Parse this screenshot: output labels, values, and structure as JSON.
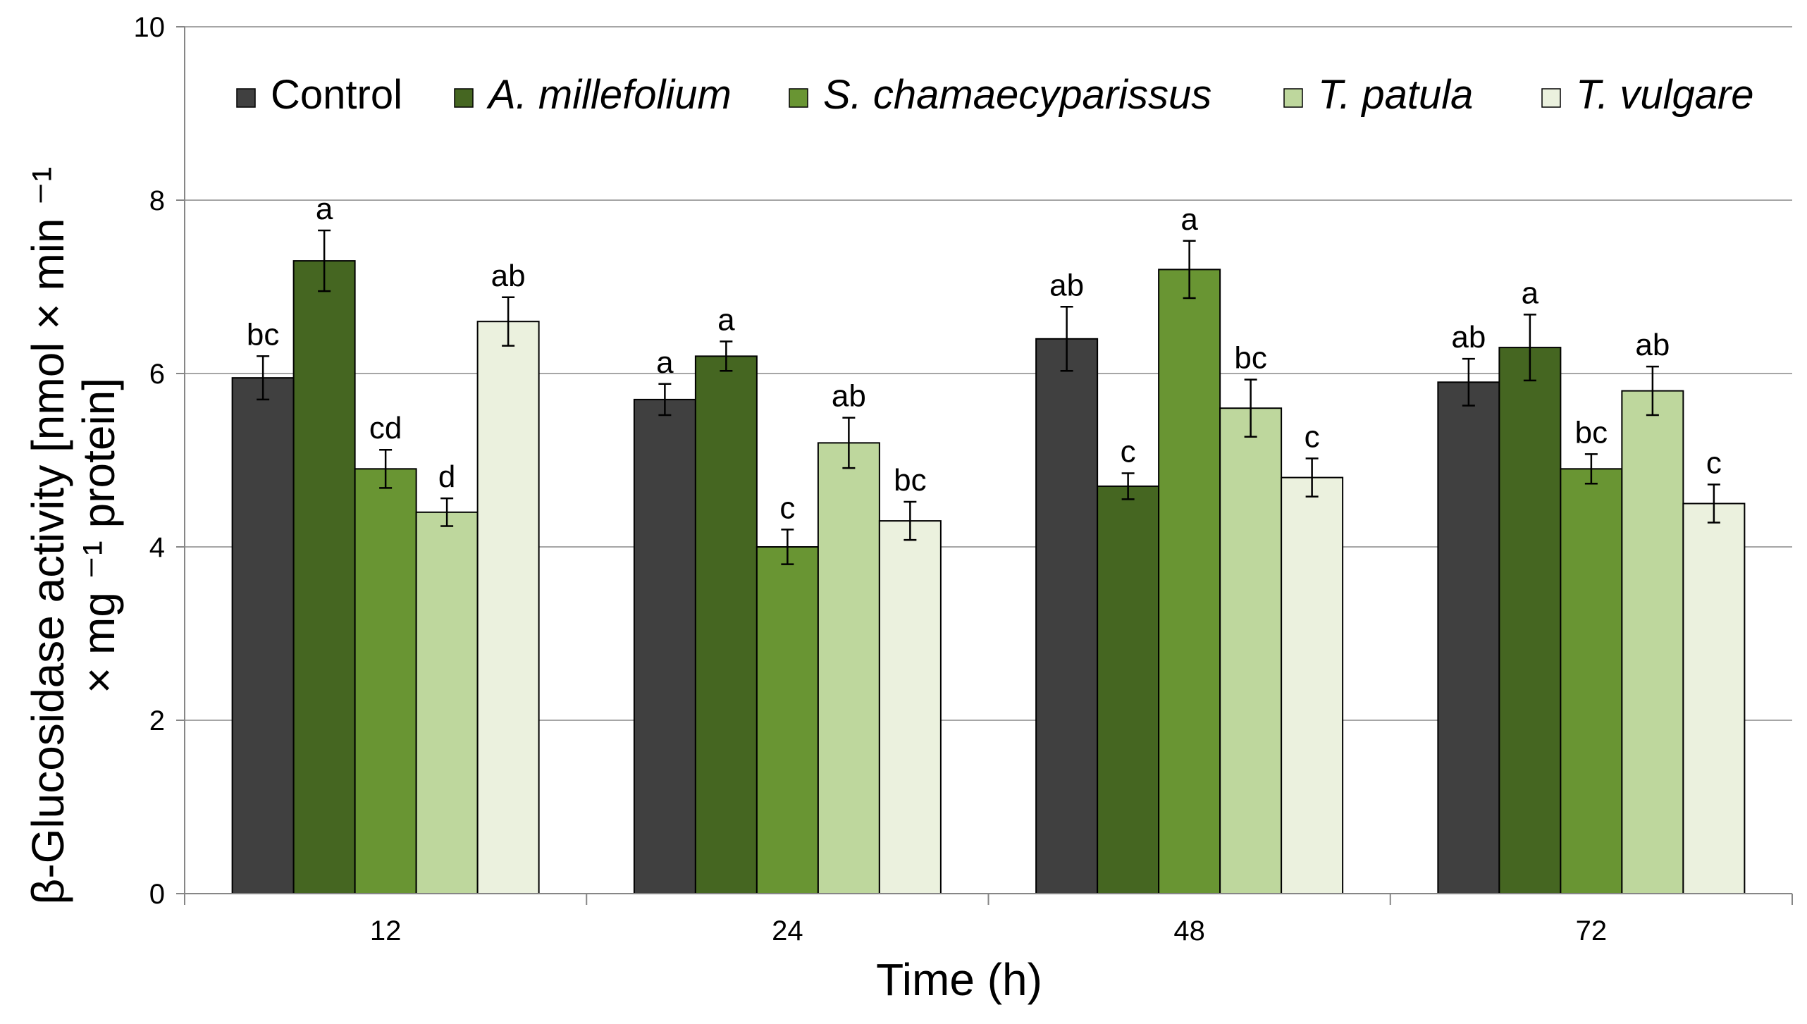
{
  "chart_data": {
    "type": "bar",
    "title": "",
    "xlabel": "Time (h)",
    "ylabel_line1": "β-Glucosidase activity [nmol × min ⁻¹",
    "ylabel_line2": "× mg ⁻¹ protein]",
    "ylim": [
      0,
      10
    ],
    "yticks": [
      "0",
      "2",
      "4",
      "6",
      "8",
      "10"
    ],
    "grid": true,
    "legend_position": "top",
    "categories": [
      "12",
      "24",
      "48",
      "72"
    ],
    "series": [
      {
        "name": "Control",
        "italic": false,
        "color": "#404040",
        "values": [
          5.95,
          5.7,
          6.4,
          5.9
        ],
        "errors": [
          0.25,
          0.18,
          0.37,
          0.27
        ],
        "letters": [
          "bc",
          "a",
          "ab",
          "ab"
        ]
      },
      {
        "name": "A. millefolium",
        "italic": true,
        "color": "#456621",
        "values": [
          7.3,
          6.2,
          4.7,
          6.3
        ],
        "errors": [
          0.35,
          0.17,
          0.15,
          0.38
        ],
        "letters": [
          "a",
          "a",
          "c",
          "a"
        ]
      },
      {
        "name": "S. chamaecyparissus",
        "italic": true,
        "color": "#699533",
        "values": [
          4.9,
          4.0,
          7.2,
          4.9
        ],
        "errors": [
          0.22,
          0.2,
          0.33,
          0.17
        ],
        "letters": [
          "cd",
          "c",
          "a",
          "bc"
        ]
      },
      {
        "name": "T. patula",
        "italic": true,
        "color": "#bed79d",
        "values": [
          4.4,
          5.2,
          5.6,
          5.8
        ],
        "errors": [
          0.16,
          0.29,
          0.33,
          0.28
        ],
        "letters": [
          "d",
          "ab",
          "bc",
          "ab"
        ]
      },
      {
        "name": "T. vulgare",
        "italic": true,
        "color": "#ebf1de",
        "values": [
          6.6,
          4.3,
          4.8,
          4.5
        ],
        "errors": [
          0.28,
          0.22,
          0.22,
          0.22
        ],
        "letters": [
          "ab",
          "bc",
          "c",
          "c"
        ]
      }
    ]
  }
}
